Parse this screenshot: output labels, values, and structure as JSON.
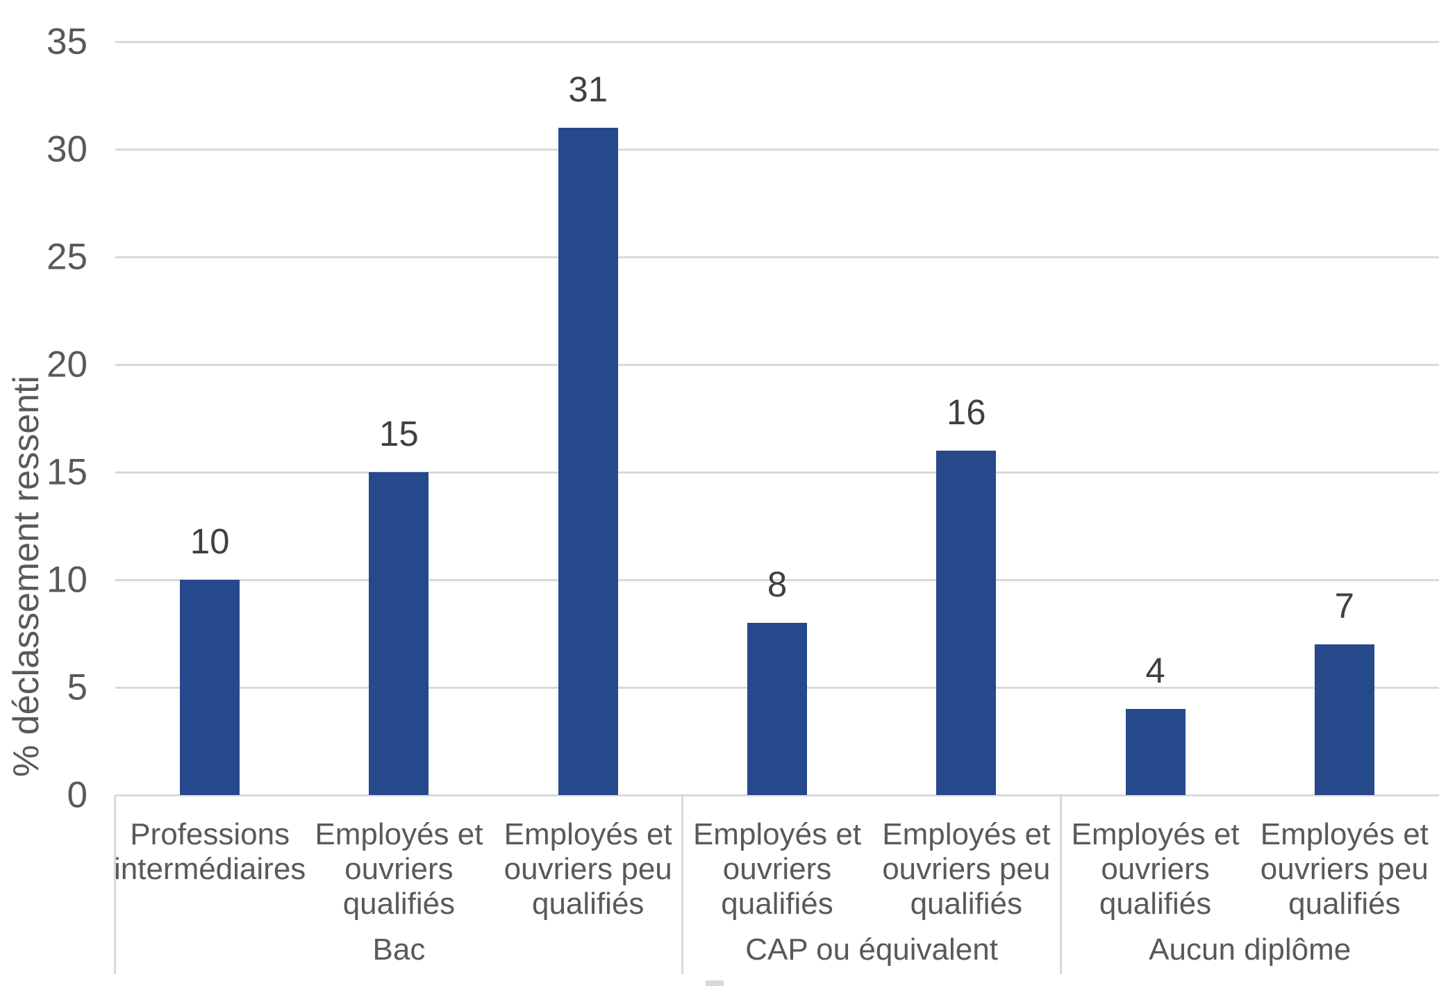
{
  "chart_data": {
    "type": "bar",
    "title": "",
    "xlabel": "",
    "ylabel": "% déclassement ressenti",
    "ylim": [
      0,
      35
    ],
    "yticks": [
      0,
      5,
      10,
      15,
      20,
      25,
      30,
      35
    ],
    "grid": "horizontal",
    "legend": "none",
    "data_labels_shown": true,
    "categories": [
      "Professions intermédiaires",
      "Employés et ouvriers qualifiés",
      "Employés et ouvriers peu qualifiés",
      "Employés et ouvriers qualifiés",
      "Employés et ouvriers peu qualifiés",
      "Employés et ouvriers qualifiés",
      "Employés et ouvriers peu qualifiés"
    ],
    "values": [
      10,
      15,
      31,
      8,
      16,
      4,
      7
    ],
    "groups": [
      {
        "label": "Bac",
        "bar_count": 3
      },
      {
        "label": "CAP ou équivalent",
        "bar_count": 2
      },
      {
        "label": "Aucun diplôme",
        "bar_count": 2
      }
    ],
    "colors": {
      "bar": "#26498c",
      "gridline": "#d9d9d9",
      "axis_text": "#595959",
      "data_label": "#404040"
    }
  }
}
